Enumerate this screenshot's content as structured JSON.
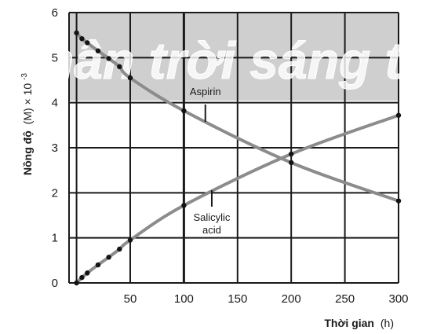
{
  "chart_data": {
    "type": "line",
    "xlabel_bold": "Thời gian",
    "xlabel_unit": "(h)",
    "ylabel_bold": "Nồng độ",
    "ylabel_unit": "(M) × 10",
    "ylabel_exp": "-3",
    "xlim": [
      -7,
      300
    ],
    "ylim": [
      0,
      6
    ],
    "x_ticks": [
      0,
      50,
      100,
      150,
      200,
      250,
      300
    ],
    "x_tick_labels": [
      "",
      "50",
      "100",
      "150",
      "200",
      "250",
      "300"
    ],
    "y_ticks": [
      0,
      1,
      2,
      3,
      4,
      5,
      6
    ],
    "y_tick_labels": [
      "0",
      "1",
      "2",
      "3",
      "4",
      "5",
      "6"
    ],
    "grid": true,
    "series": [
      {
        "name": "Aspirin",
        "label_lines": [
          "Aspirin"
        ],
        "x": [
          0,
          5,
          10,
          20,
          30,
          40,
          50,
          100,
          200,
          300
        ],
        "y": [
          5.55,
          5.42,
          5.33,
          5.15,
          4.98,
          4.8,
          4.55,
          3.82,
          2.67,
          1.82
        ]
      },
      {
        "name": "Salicylic acid",
        "label_lines": [
          "Salicylic",
          "acid"
        ],
        "x": [
          0,
          5,
          10,
          20,
          30,
          40,
          50,
          100,
          200,
          300
        ],
        "y": [
          0,
          0.12,
          0.22,
          0.4,
          0.57,
          0.75,
          0.95,
          1.72,
          2.86,
          3.72
        ]
      }
    ],
    "colors": {
      "grid": "#1a1a1a",
      "curve": "#8c8c8c",
      "point": "#141414",
      "text": "#1a1a1a"
    }
  },
  "watermark": "Chân trời sáng tạo"
}
